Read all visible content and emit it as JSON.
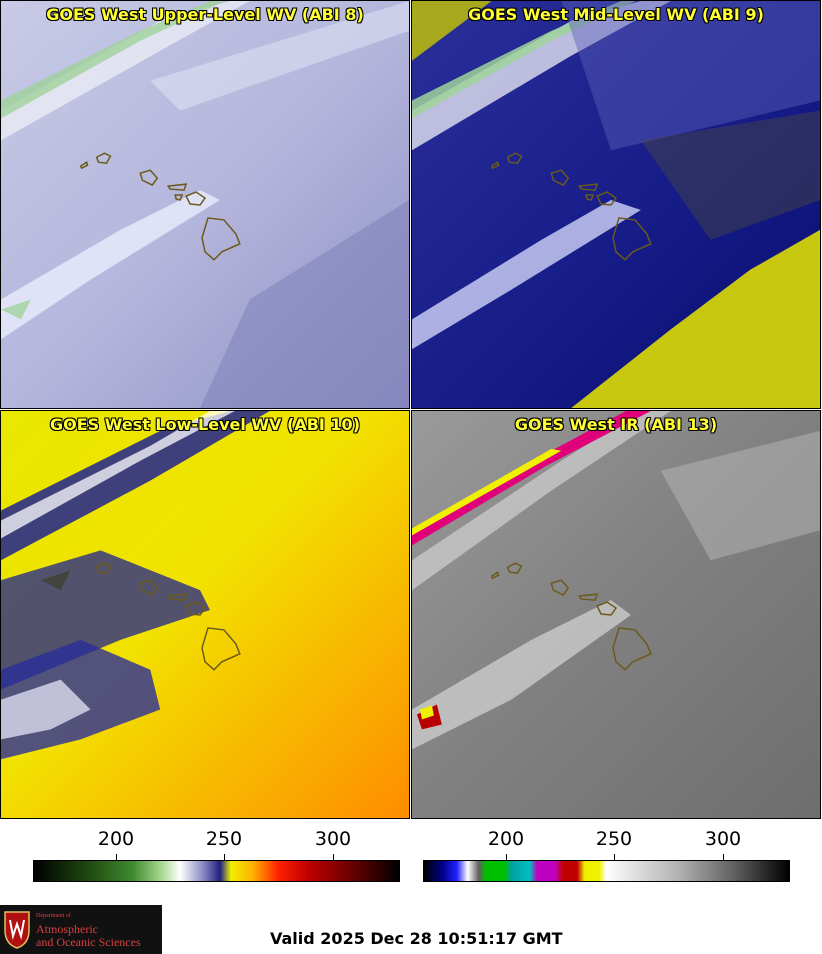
{
  "panels": [
    {
      "title": "GOES West Upper-Level WV (ABI 8)"
    },
    {
      "title": "GOES West Mid-Level WV (ABI 9)"
    },
    {
      "title": "GOES West Low-Level WV (ABI 10)"
    },
    {
      "title": "GOES West IR (ABI 13)"
    }
  ],
  "colorbars": [
    {
      "name": "wv-colorbar",
      "ticks": [
        "200",
        "250",
        "300"
      ]
    },
    {
      "name": "ir-colorbar",
      "ticks": [
        "200",
        "250",
        "300"
      ]
    }
  ],
  "logo": {
    "dept": "Department of",
    "line1": "Atmospheric",
    "line2": "and Oceanic Sciences"
  },
  "valid_time": "Valid 2025 Dec 28 10:51:17 GMT",
  "colors": {
    "highlight_title": "#ffff33",
    "island_outline": "#6b5a1a"
  }
}
